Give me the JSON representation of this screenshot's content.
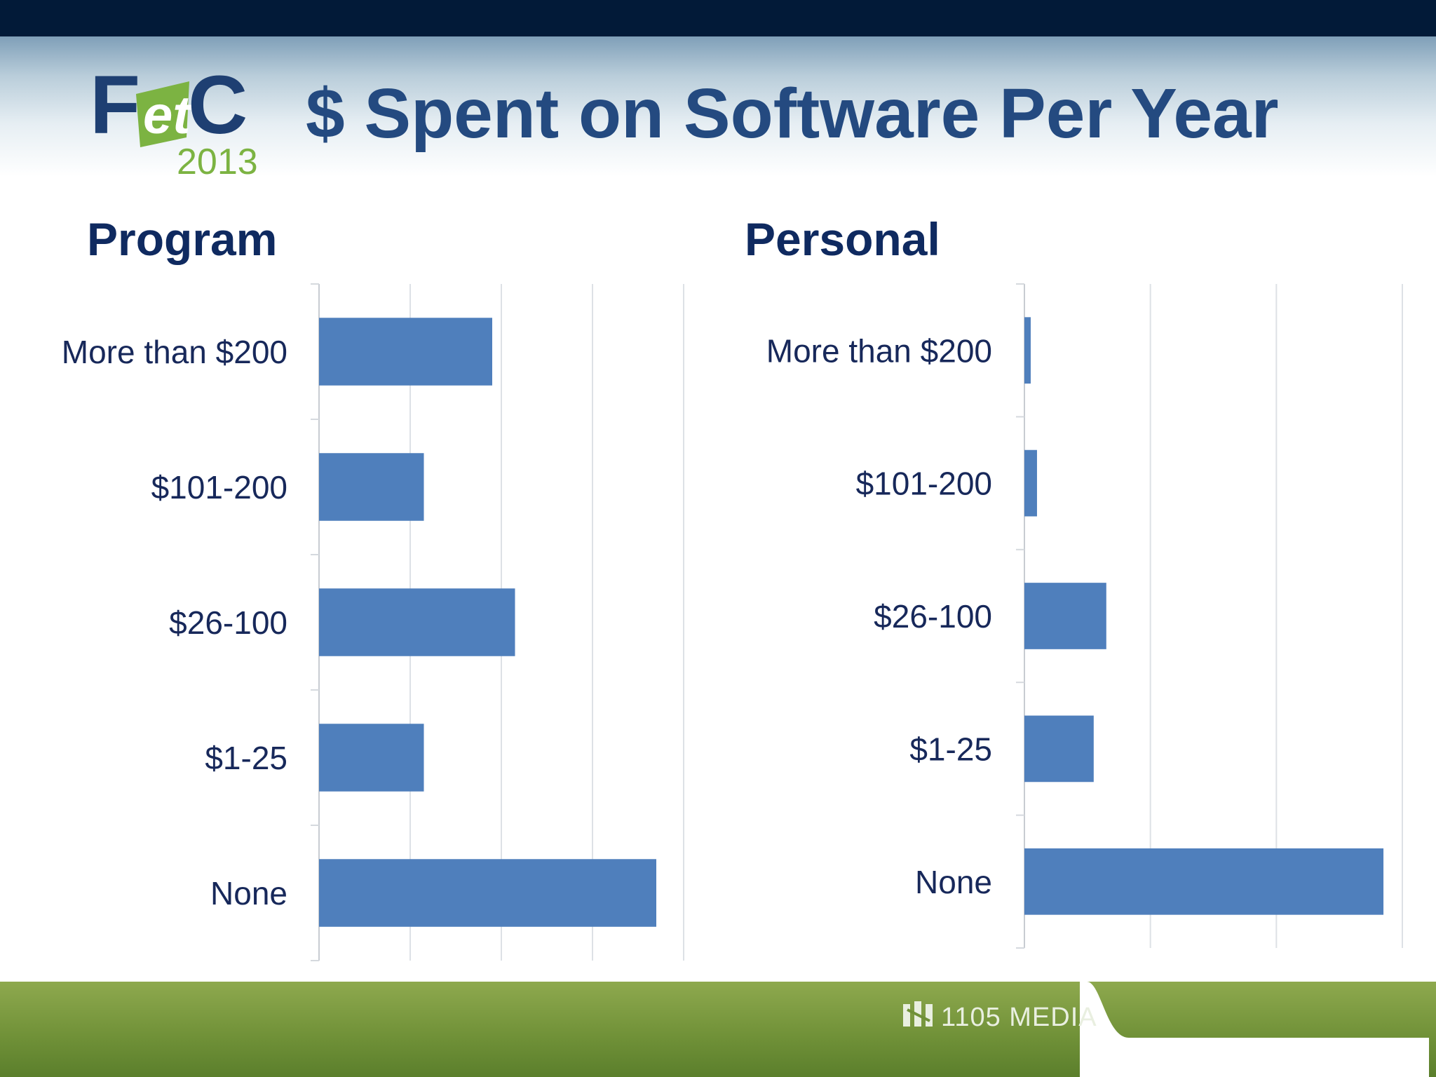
{
  "slide": {
    "title": "$ Spent on Software Per Year",
    "logo": {
      "word": "FetC",
      "year": "2013"
    },
    "footer_brand": "1105 MEDIA",
    "colors": {
      "top_bar": "#021a38",
      "title": "#244a80",
      "heading": "#0f2a60",
      "bar": "#4f7fbc",
      "footer_green": "#7a9a3e",
      "logo_green": "#7cb342"
    }
  },
  "chart_data": [
    {
      "type": "bar",
      "orientation": "horizontal",
      "title": "Program",
      "categories": [
        "More than $200",
        "$101-200",
        "$26-100",
        "$1-25",
        "None"
      ],
      "values": [
        19,
        11.5,
        21.5,
        11.5,
        37
      ],
      "xlim": [
        0,
        40
      ],
      "grid": true,
      "tick_labels_shown": false
    },
    {
      "type": "bar",
      "orientation": "horizontal",
      "title": "Personal",
      "categories": [
        "More than $200",
        "$101-200",
        "$26-100",
        "$1-25",
        "None"
      ],
      "values": [
        1,
        2,
        13,
        11,
        57
      ],
      "xlim": [
        0,
        60
      ],
      "grid": true,
      "tick_labels_shown": false
    }
  ]
}
